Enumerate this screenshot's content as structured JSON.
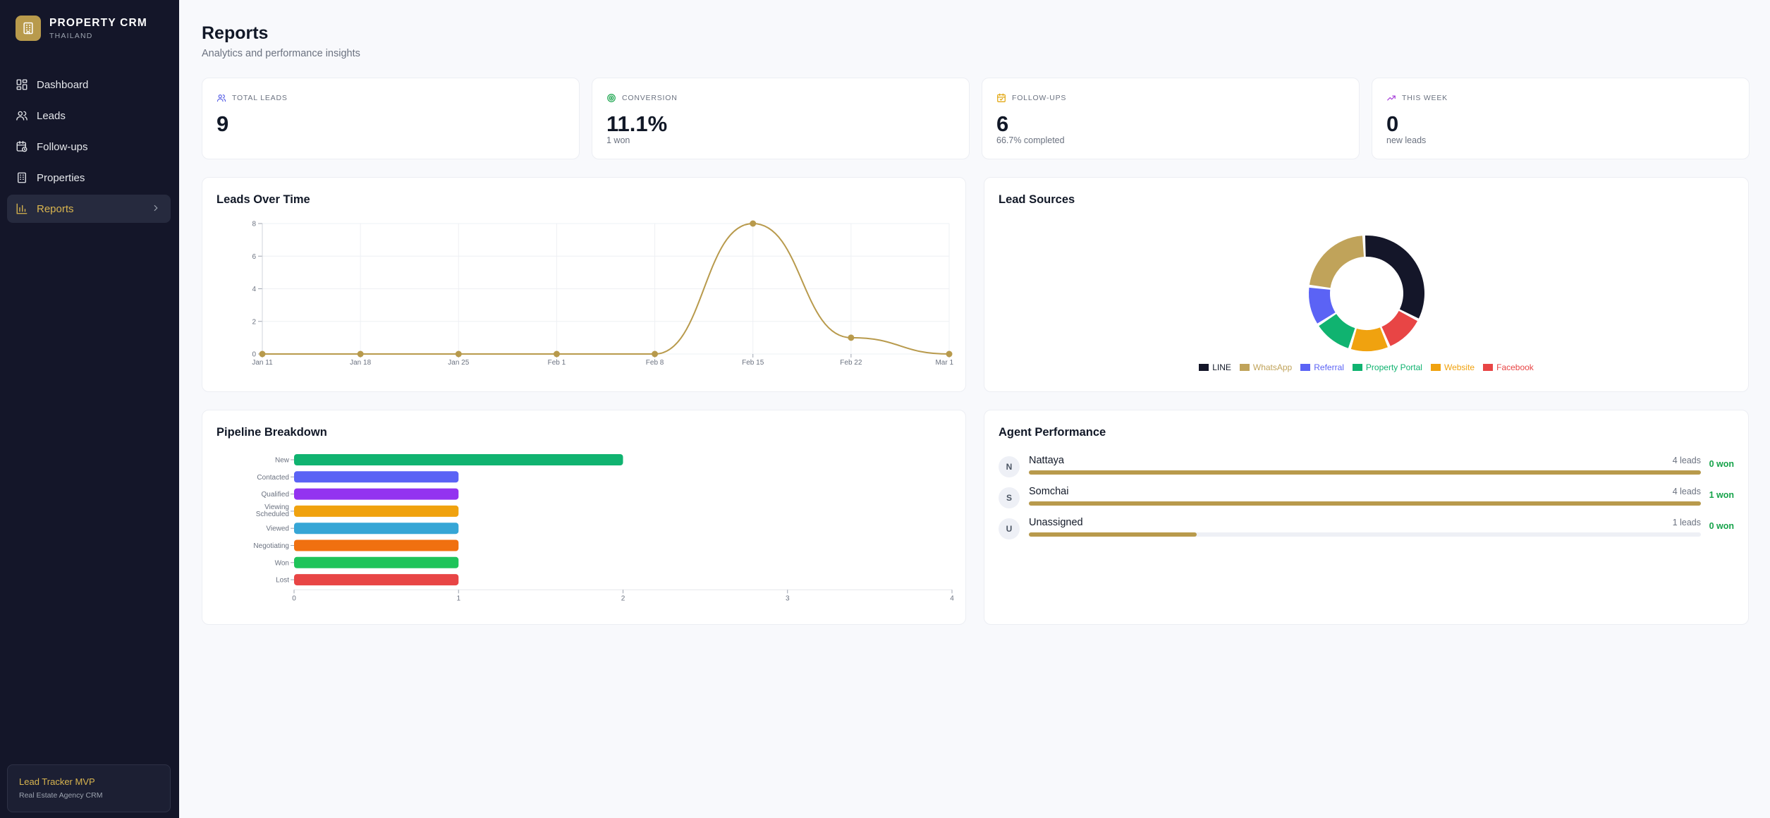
{
  "app": {
    "name": "PROPERTY CRM",
    "region": "THAILAND"
  },
  "nav": {
    "items": [
      {
        "label": "Dashboard",
        "icon": "dashboard-icon",
        "active": false
      },
      {
        "label": "Leads",
        "icon": "users-icon",
        "active": false
      },
      {
        "label": "Follow-ups",
        "icon": "calendar-clock-icon",
        "active": false
      },
      {
        "label": "Properties",
        "icon": "building-icon",
        "active": false
      },
      {
        "label": "Reports",
        "icon": "bar-chart-icon",
        "active": true
      }
    ]
  },
  "footer": {
    "title": "Lead Tracker MVP",
    "subtitle": "Real Estate Agency CRM"
  },
  "page": {
    "title": "Reports",
    "subtitle": "Analytics and performance insights"
  },
  "stats": [
    {
      "label": "TOTAL LEADS",
      "value": "9",
      "sub": "",
      "icon": "users-icon",
      "color": "#5b63e6"
    },
    {
      "label": "CONVERSION",
      "value": "11.1%",
      "sub": "1 won",
      "icon": "target-icon",
      "color": "#16a34a"
    },
    {
      "label": "FOLLOW-UPS",
      "value": "6",
      "sub": "66.7% completed",
      "icon": "calendar-icon",
      "color": "#e0a100"
    },
    {
      "label": "THIS WEEK",
      "value": "0",
      "sub": "new leads",
      "icon": "trending-up-icon",
      "color": "#a63fd9"
    }
  ],
  "leads_chart": {
    "title": "Leads Over Time"
  },
  "sources_chart": {
    "title": "Lead Sources"
  },
  "pipeline_chart": {
    "title": "Pipeline Breakdown"
  },
  "agents": {
    "title": "Agent Performance",
    "rows": [
      {
        "initial": "N",
        "name": "Nattaya",
        "leads": "4 leads",
        "won": "0 won",
        "fraction": 1.0
      },
      {
        "initial": "S",
        "name": "Somchai",
        "leads": "4 leads",
        "won": "1 won",
        "fraction": 1.0
      },
      {
        "initial": "U",
        "name": "Unassigned",
        "leads": "1 leads",
        "won": "0 won",
        "fraction": 0.25
      }
    ]
  },
  "colors": {
    "accent": "#b89a4c",
    "sidebar": "#141629",
    "active": "#d9b54f"
  },
  "chart_data": [
    {
      "type": "line",
      "title": "Leads Over Time",
      "x": [
        "Jan 11",
        "Jan 18",
        "Jan 25",
        "Feb 1",
        "Feb 8",
        "Feb 15",
        "Feb 22",
        "Mar 1"
      ],
      "values": [
        0,
        0,
        0,
        0,
        0,
        8,
        1,
        0
      ],
      "yticks": [
        0,
        2,
        4,
        6,
        8
      ],
      "ylim": [
        0,
        8
      ],
      "grid": true,
      "color": "#b89a4c"
    },
    {
      "type": "pie",
      "title": "Lead Sources",
      "legend": "bottom",
      "slices": [
        {
          "label": "LINE",
          "value": 3,
          "color": "#141629"
        },
        {
          "label": "Facebook",
          "value": 1,
          "color": "#e84545"
        },
        {
          "label": "Website",
          "value": 1,
          "color": "#f0a20f"
        },
        {
          "label": "Property Portal",
          "value": 1,
          "color": "#10b370"
        },
        {
          "label": "Referral",
          "value": 1,
          "color": "#5b63f5"
        },
        {
          "label": "WhatsApp",
          "value": 2,
          "color": "#c0a35a"
        }
      ],
      "legend_order": [
        "LINE",
        "WhatsApp",
        "Referral",
        "Property Portal",
        "Website",
        "Facebook"
      ]
    },
    {
      "type": "bar",
      "title": "Pipeline Breakdown",
      "orientation": "horizontal",
      "categories": [
        "New",
        "Contacted",
        "Qualified",
        "Viewing Scheduled",
        "Viewed",
        "Negotiating",
        "Won",
        "Lost"
      ],
      "values": [
        2,
        1,
        1,
        1,
        1,
        1,
        1,
        1
      ],
      "colors": [
        "#10b370",
        "#5b63f5",
        "#9333f0",
        "#f0a20f",
        "#36a6d6",
        "#f07010",
        "#1fc45a",
        "#e84545"
      ],
      "xticks": [
        0,
        1,
        2,
        3,
        4
      ],
      "xlim": [
        0,
        4
      ]
    }
  ]
}
